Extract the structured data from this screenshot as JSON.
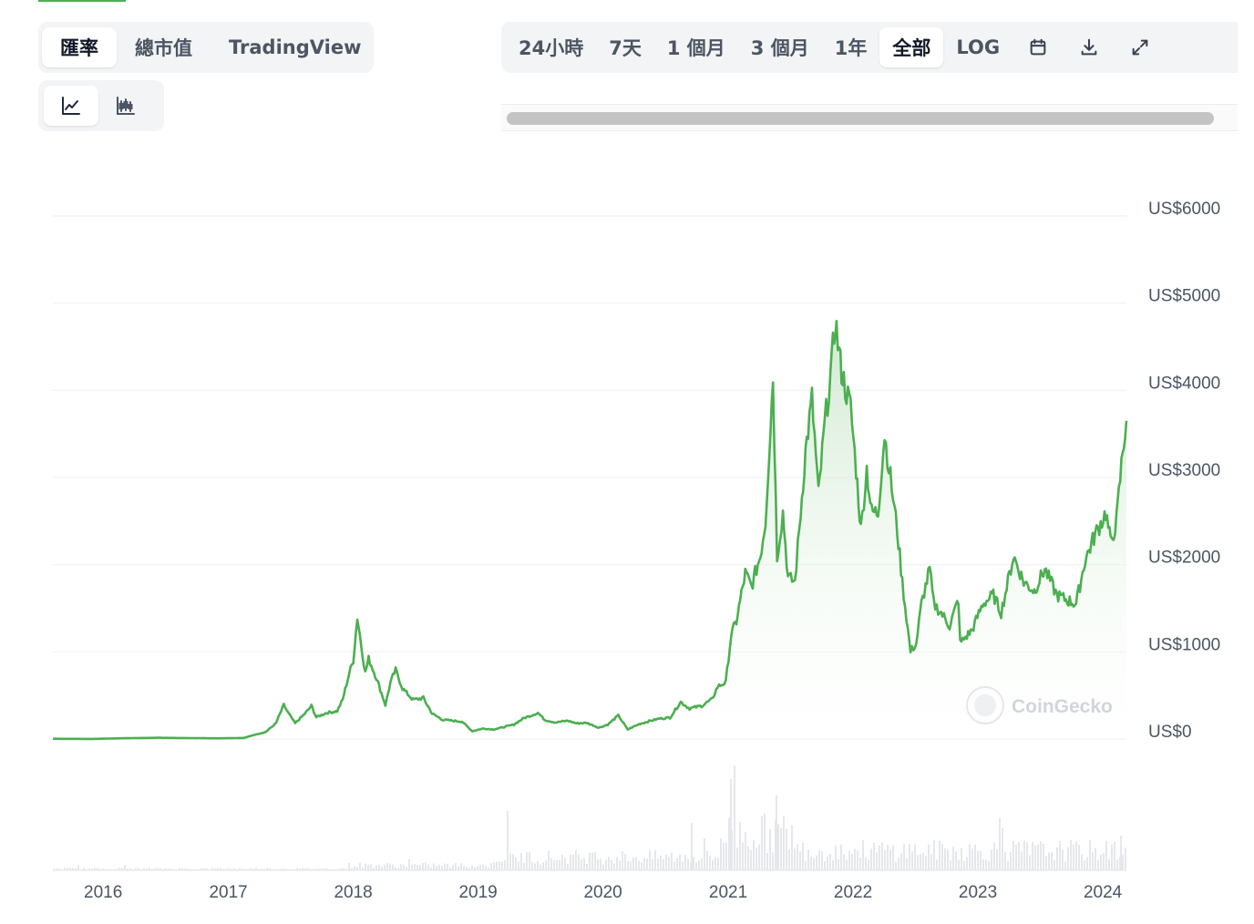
{
  "view_tabs": [
    {
      "label": "匯率",
      "active": true
    },
    {
      "label": "總市值",
      "active": false
    },
    {
      "label": "TradingView",
      "active": false
    }
  ],
  "chart_type_toggle": [
    {
      "icon": "line-chart-icon",
      "active": true
    },
    {
      "icon": "candlestick-chart-icon",
      "active": false
    }
  ],
  "range_tabs": [
    {
      "label": "24小時",
      "active": false
    },
    {
      "label": "7天",
      "active": false
    },
    {
      "label": "1 個月",
      "active": false
    },
    {
      "label": "3 個月",
      "active": false
    },
    {
      "label": "1年",
      "active": false
    },
    {
      "label": "全部",
      "active": true
    },
    {
      "label": "LOG",
      "active": false
    }
  ],
  "toolbar_icons": [
    "calendar-icon",
    "download-icon",
    "fullscreen-icon"
  ],
  "watermark": "CoinGecko",
  "colors": {
    "line": "#4caf50",
    "fill": "#e8f5e9",
    "grid": "#eef0f2",
    "volume": "#e5e7eb"
  },
  "chart_data": {
    "type": "area",
    "x_axis": "time",
    "xticks": [
      "2016",
      "2017",
      "2018",
      "2019",
      "2020",
      "2021",
      "2022",
      "2023",
      "2024"
    ],
    "yticks": [
      "US$0",
      "US$1000",
      "US$2000",
      "US$3000",
      "US$4000",
      "US$5000",
      "US$6000"
    ],
    "ylim": [
      0,
      6000
    ],
    "xlim": [
      "2015-08-07",
      "2024-03-10"
    ],
    "grid": true,
    "series": [
      {
        "points": [
          [
            "2015-08-07",
            3
          ],
          [
            "2015-12-01",
            1
          ],
          [
            "2016-03-15",
            10
          ],
          [
            "2016-06-15",
            14
          ],
          [
            "2016-09-01",
            11
          ],
          [
            "2016-12-01",
            8
          ],
          [
            "2017-02-15",
            12
          ],
          [
            "2017-03-15",
            45
          ],
          [
            "2017-04-20",
            80
          ],
          [
            "2017-05-20",
            180
          ],
          [
            "2017-06-12",
            390
          ],
          [
            "2017-06-25",
            300
          ],
          [
            "2017-07-15",
            180
          ],
          [
            "2017-08-15",
            300
          ],
          [
            "2017-09-01",
            380
          ],
          [
            "2017-09-15",
            250
          ],
          [
            "2017-10-15",
            300
          ],
          [
            "2017-11-15",
            320
          ],
          [
            "2017-12-01",
            450
          ],
          [
            "2017-12-20",
            750
          ],
          [
            "2018-01-01",
            900
          ],
          [
            "2018-01-13",
            1400
          ],
          [
            "2018-02-05",
            760
          ],
          [
            "2018-02-15",
            920
          ],
          [
            "2018-03-10",
            700
          ],
          [
            "2018-04-05",
            390
          ],
          [
            "2018-04-20",
            650
          ],
          [
            "2018-05-05",
            790
          ],
          [
            "2018-05-25",
            580
          ],
          [
            "2018-06-25",
            450
          ],
          [
            "2018-07-25",
            470
          ],
          [
            "2018-08-20",
            290
          ],
          [
            "2018-09-20",
            220
          ],
          [
            "2018-11-15",
            200
          ],
          [
            "2018-12-15",
            90
          ],
          [
            "2019-01-15",
            120
          ],
          [
            "2019-02-15",
            110
          ],
          [
            "2019-03-15",
            135
          ],
          [
            "2019-04-15",
            165
          ],
          [
            "2019-05-15",
            240
          ],
          [
            "2019-06-25",
            300
          ],
          [
            "2019-07-15",
            220
          ],
          [
            "2019-08-15",
            190
          ],
          [
            "2019-09-20",
            210
          ],
          [
            "2019-10-15",
            180
          ],
          [
            "2019-11-15",
            185
          ],
          [
            "2019-12-20",
            130
          ],
          [
            "2020-01-15",
            165
          ],
          [
            "2020-02-15",
            270
          ],
          [
            "2020-03-13",
            110
          ],
          [
            "2020-04-15",
            170
          ],
          [
            "2020-05-15",
            205
          ],
          [
            "2020-06-15",
            235
          ],
          [
            "2020-07-15",
            245
          ],
          [
            "2020-08-15",
            425
          ],
          [
            "2020-09-10",
            350
          ],
          [
            "2020-10-15",
            380
          ],
          [
            "2020-11-15",
            455
          ],
          [
            "2020-12-01",
            600
          ],
          [
            "2020-12-25",
            650
          ],
          [
            "2021-01-10",
            1200
          ],
          [
            "2021-01-25",
            1350
          ],
          [
            "2021-02-20",
            1900
          ],
          [
            "2021-03-10",
            1750
          ],
          [
            "2021-04-05",
            2100
          ],
          [
            "2021-04-20",
            2500
          ],
          [
            "2021-05-12",
            4150
          ],
          [
            "2021-05-24",
            2100
          ],
          [
            "2021-06-10",
            2600
          ],
          [
            "2021-06-25",
            1850
          ],
          [
            "2021-07-15",
            1800
          ],
          [
            "2021-08-01",
            2600
          ],
          [
            "2021-08-15",
            3300
          ],
          [
            "2021-09-03",
            3900
          ],
          [
            "2021-09-22",
            2800
          ],
          [
            "2021-10-10",
            3600
          ],
          [
            "2021-10-31",
            4300
          ],
          [
            "2021-11-10",
            4800
          ],
          [
            "2021-11-25",
            4300
          ],
          [
            "2021-12-05",
            4100
          ],
          [
            "2021-12-25",
            3800
          ],
          [
            "2022-01-10",
            3100
          ],
          [
            "2022-01-24",
            2400
          ],
          [
            "2022-02-10",
            3100
          ],
          [
            "2022-02-24",
            2600
          ],
          [
            "2022-03-15",
            2600
          ],
          [
            "2022-04-03",
            3500
          ],
          [
            "2022-04-20",
            3000
          ],
          [
            "2022-05-10",
            2400
          ],
          [
            "2022-05-25",
            1800
          ],
          [
            "2022-06-18",
            1000
          ],
          [
            "2022-07-05",
            1100
          ],
          [
            "2022-07-20",
            1550
          ],
          [
            "2022-08-13",
            1950
          ],
          [
            "2022-08-25",
            1550
          ],
          [
            "2022-09-15",
            1450
          ],
          [
            "2022-10-10",
            1300
          ],
          [
            "2022-11-05",
            1600
          ],
          [
            "2022-11-10",
            1100
          ],
          [
            "2022-12-15",
            1250
          ],
          [
            "2023-01-15",
            1550
          ],
          [
            "2023-02-15",
            1650
          ],
          [
            "2023-03-10",
            1450
          ],
          [
            "2023-04-15",
            2100
          ],
          [
            "2023-05-15",
            1800
          ],
          [
            "2023-06-15",
            1700
          ],
          [
            "2023-07-15",
            1950
          ],
          [
            "2023-08-20",
            1650
          ],
          [
            "2023-09-15",
            1600
          ],
          [
            "2023-10-15",
            1550
          ],
          [
            "2023-11-10",
            2050
          ],
          [
            "2023-12-10",
            2350
          ],
          [
            "2024-01-10",
            2600
          ],
          [
            "2024-01-24",
            2250
          ],
          [
            "2024-02-10",
            2500
          ],
          [
            "2024-02-28",
            3300
          ],
          [
            "2024-03-10",
            3650
          ]
        ]
      }
    ]
  }
}
